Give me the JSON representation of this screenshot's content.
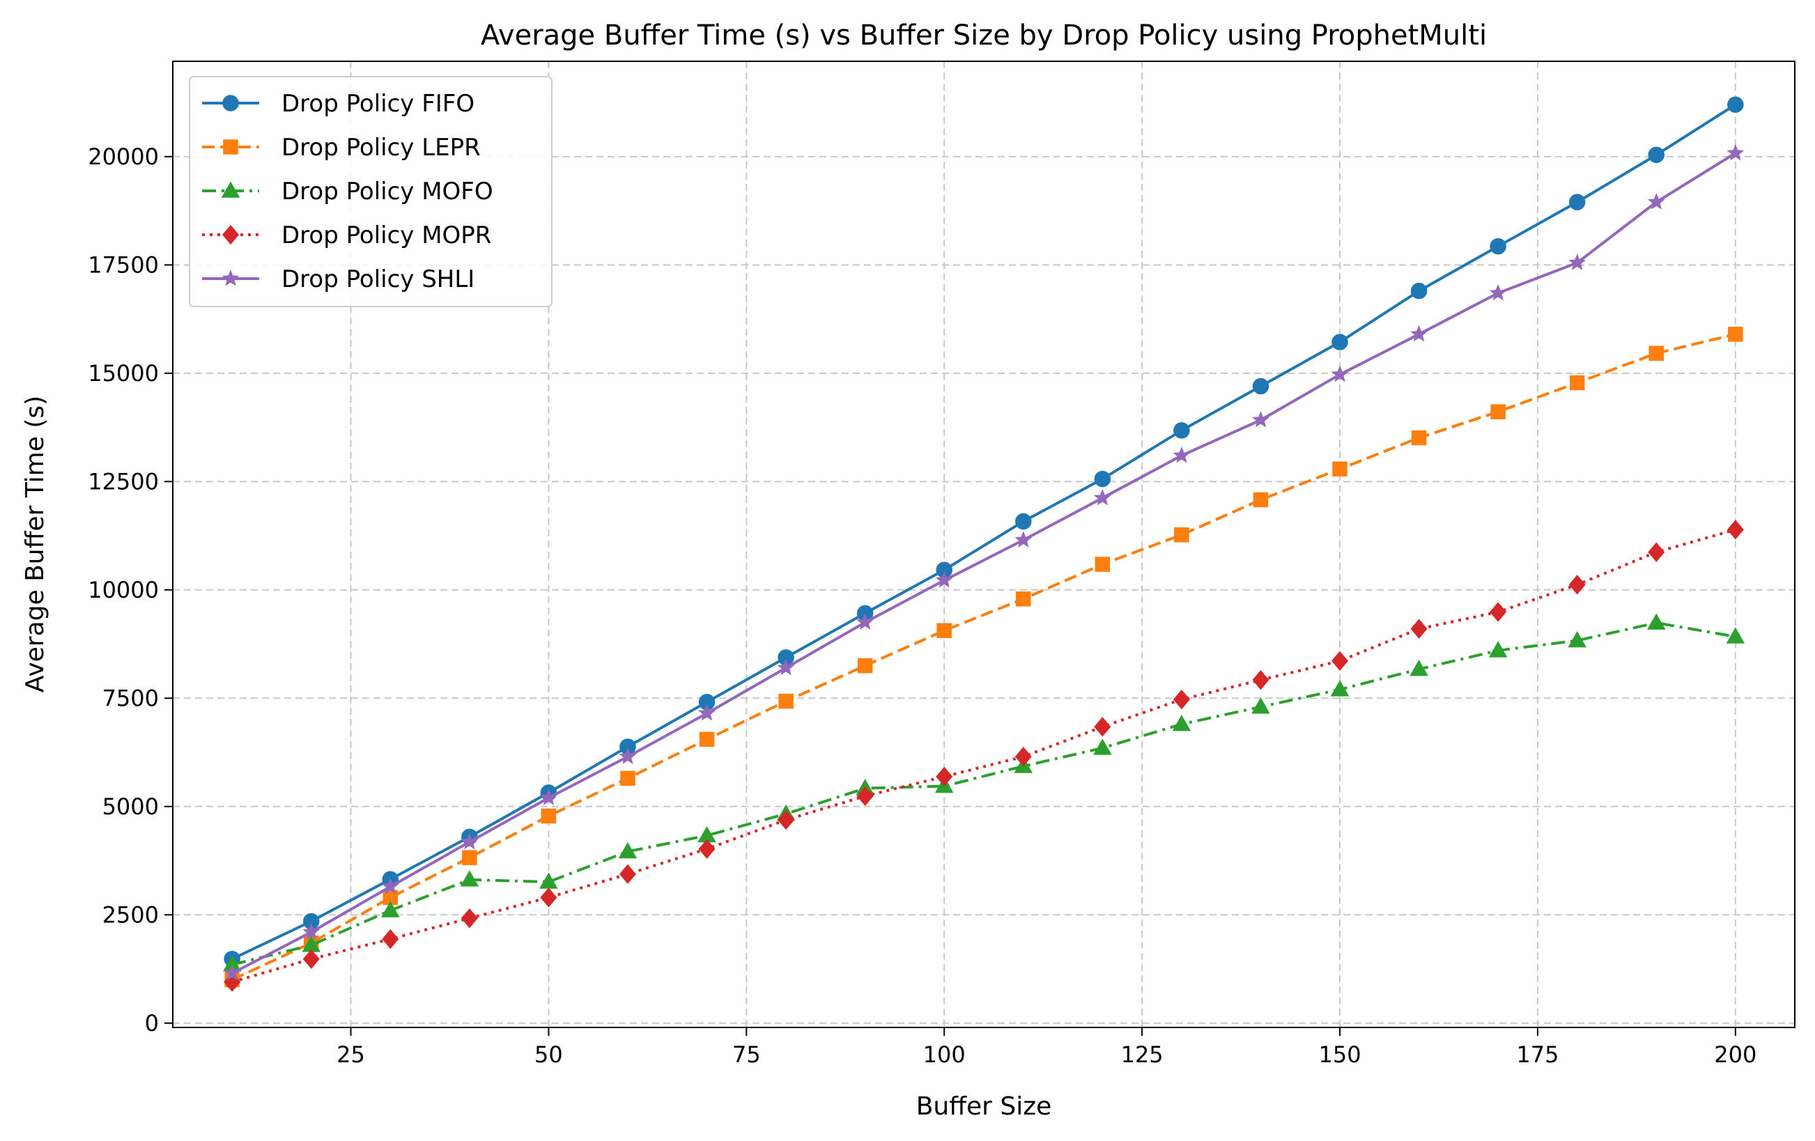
{
  "chart_data": {
    "type": "line",
    "title": "Average Buffer Time (s) vs Buffer Size by Drop Policy using ProphetMulti",
    "xlabel": "Buffer Size",
    "ylabel": "Average Buffer Time (s)",
    "xlim": [
      2.5,
      207.5
    ],
    "ylim": [
      -100,
      22200
    ],
    "xticks": [
      25,
      50,
      75,
      100,
      125,
      150,
      175,
      200
    ],
    "yticks": [
      0,
      2500,
      5000,
      7500,
      10000,
      12500,
      15000,
      17500,
      20000
    ],
    "grid": true,
    "legend_position": "top-left",
    "x": [
      10,
      20,
      30,
      40,
      50,
      60,
      70,
      80,
      90,
      100,
      110,
      120,
      130,
      140,
      150,
      160,
      170,
      180,
      190,
      200
    ],
    "series": [
      {
        "name": "Drop Policy FIFO",
        "color": "#1f77b4",
        "marker": "circle",
        "linestyle": "solid",
        "values": [
          1480,
          2350,
          3320,
          4300,
          5320,
          6380,
          7410,
          8440,
          9460,
          10460,
          11580,
          12560,
          13680,
          14700,
          15720,
          16900,
          17930,
          18950,
          20040,
          21200
        ]
      },
      {
        "name": "Drop Policy LEPR",
        "color": "#ff7f0e",
        "marker": "square",
        "linestyle": "dashed",
        "values": [
          1000,
          1850,
          2900,
          3820,
          4780,
          5650,
          6550,
          7430,
          8250,
          9060,
          9790,
          10590,
          11270,
          12080,
          12790,
          13510,
          14110,
          14780,
          15460,
          15900
        ]
      },
      {
        "name": "Drop Policy MOFO",
        "color": "#2ca02c",
        "marker": "triangle",
        "linestyle": "dashdot",
        "values": [
          1350,
          1800,
          2600,
          3310,
          3260,
          3960,
          4330,
          4830,
          5420,
          5470,
          5930,
          6350,
          6900,
          7300,
          7700,
          8170,
          8600,
          8830,
          9240,
          8920
        ]
      },
      {
        "name": "Drop Policy MOPR",
        "color": "#d62728",
        "marker": "diamond",
        "linestyle": "dotted",
        "values": [
          950,
          1480,
          1940,
          2420,
          2900,
          3440,
          4020,
          4690,
          5240,
          5690,
          6150,
          6840,
          7470,
          7920,
          8360,
          9100,
          9490,
          10120,
          10870,
          11390
        ]
      },
      {
        "name": "Drop Policy SHLI",
        "color": "#9467bd",
        "marker": "star",
        "linestyle": "solid",
        "values": [
          1150,
          2100,
          3150,
          4180,
          5200,
          6150,
          7150,
          8200,
          9250,
          10220,
          11150,
          12120,
          13100,
          13920,
          14970,
          15900,
          16850,
          17550,
          18950,
          20080
        ]
      }
    ]
  }
}
